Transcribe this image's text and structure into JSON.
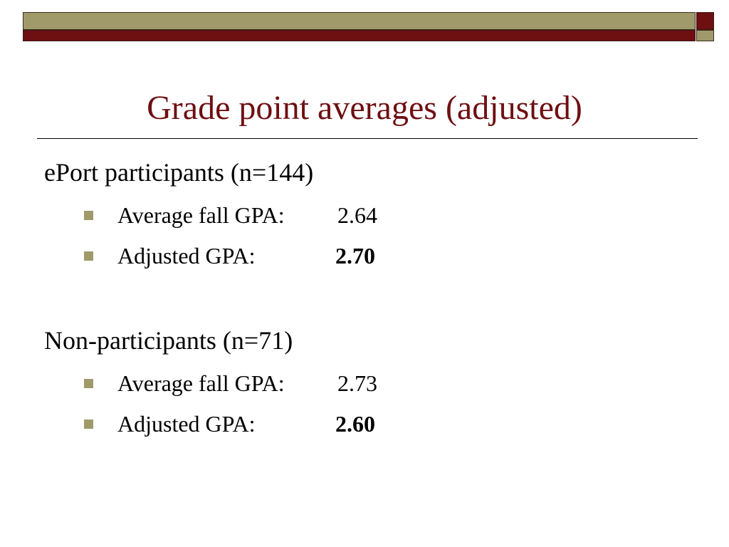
{
  "title": "Grade point averages (adjusted)",
  "groups": [
    {
      "heading": "ePort participants (n=144)",
      "items": [
        {
          "label": "Average fall GPA:",
          "value": "2.64"
        },
        {
          "label": "Adjusted GPA:",
          "value": "2.70"
        }
      ]
    },
    {
      "heading": "Non-participants (n=71)",
      "items": [
        {
          "label": "Average fall GPA:",
          "value": "2.73"
        },
        {
          "label": "Adjusted GPA:",
          "value": "2.60"
        }
      ]
    }
  ]
}
